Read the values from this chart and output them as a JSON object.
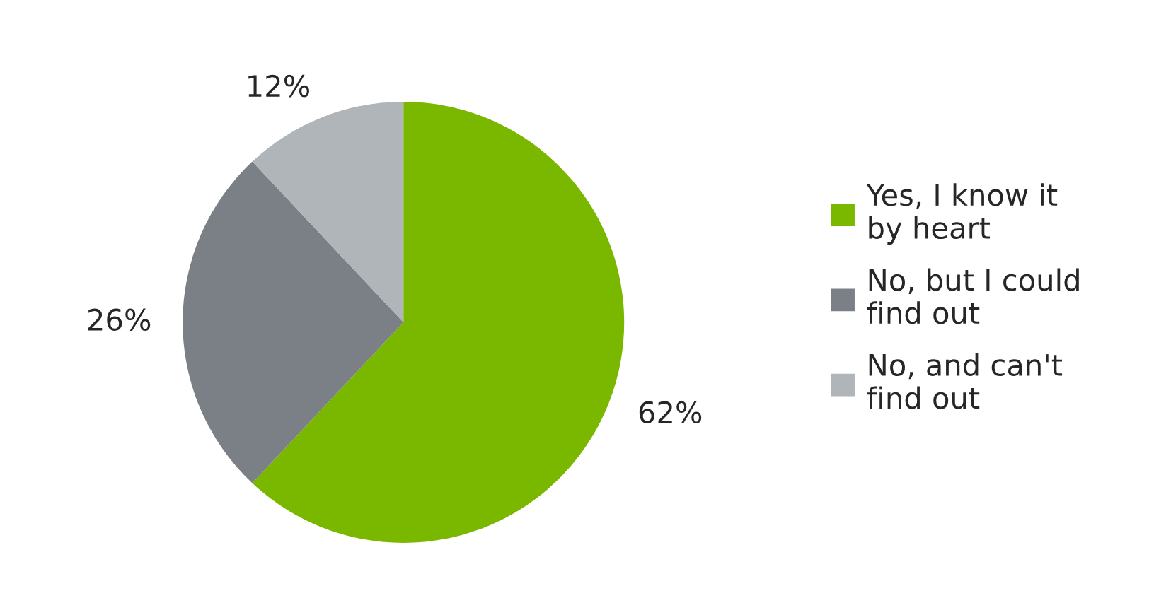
{
  "chart_data": {
    "type": "pie",
    "categories": [
      "Yes, I know it by heart",
      "No, but I could find out",
      "No, and can't find out"
    ],
    "values": [
      62,
      26,
      12
    ],
    "colors": [
      "#7ab800",
      "#7b8087",
      "#b0b5b9"
    ],
    "value_labels": [
      "62%",
      "26%",
      "12%"
    ],
    "legend": "right"
  }
}
